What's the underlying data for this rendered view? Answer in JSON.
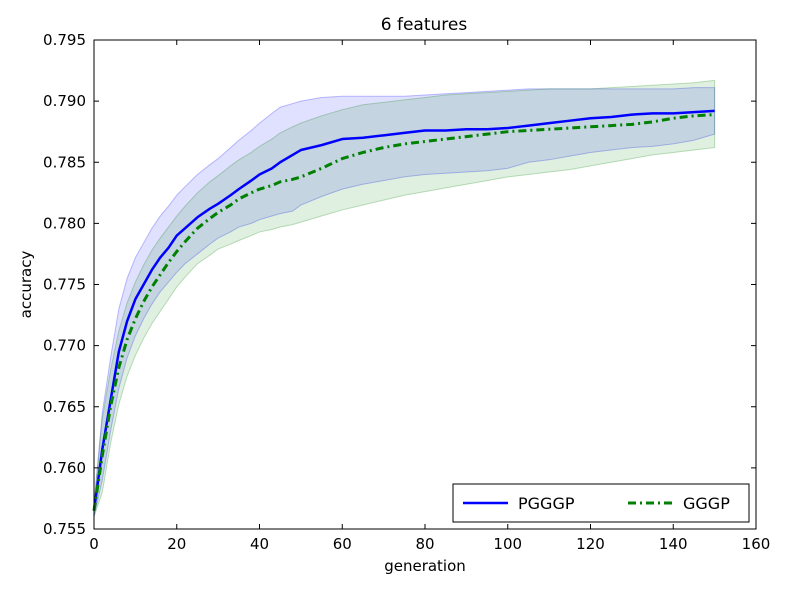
{
  "chart_data": {
    "type": "line",
    "title": "6 features",
    "xlabel": "generation",
    "ylabel": "accuracy",
    "xlim": [
      0,
      160
    ],
    "ylim": [
      0.755,
      0.795
    ],
    "xticks": [
      0,
      20,
      40,
      60,
      80,
      100,
      120,
      140,
      160
    ],
    "yticks": [
      0.755,
      0.76,
      0.765,
      0.77,
      0.775,
      0.78,
      0.785,
      0.79,
      0.795
    ],
    "xtick_labels": [
      "0",
      "20",
      "40",
      "60",
      "80",
      "100",
      "120",
      "140",
      "160"
    ],
    "ytick_labels": [
      "0.755",
      "0.760",
      "0.765",
      "0.770",
      "0.775",
      "0.780",
      "0.785",
      "0.790",
      "0.795"
    ],
    "grid": false,
    "legend_position": "lower-right",
    "series": [
      {
        "name": "PGGGP",
        "color": "#0000ff",
        "style": "solid",
        "x": [
          0,
          2,
          4,
          6,
          8,
          10,
          12,
          14,
          16,
          18,
          20,
          22,
          25,
          28,
          30,
          33,
          35,
          38,
          40,
          43,
          45,
          48,
          50,
          55,
          60,
          65,
          70,
          75,
          80,
          85,
          90,
          95,
          100,
          105,
          110,
          115,
          120,
          125,
          130,
          135,
          140,
          145,
          150
        ],
        "values": [
          0.7565,
          0.7615,
          0.7655,
          0.7695,
          0.772,
          0.7738,
          0.775,
          0.7762,
          0.7772,
          0.778,
          0.779,
          0.7796,
          0.7805,
          0.7812,
          0.7816,
          0.7823,
          0.7828,
          0.7835,
          0.784,
          0.7845,
          0.785,
          0.7856,
          0.786,
          0.7864,
          0.7869,
          0.787,
          0.7872,
          0.7874,
          0.7876,
          0.7876,
          0.7877,
          0.7877,
          0.7878,
          0.788,
          0.7882,
          0.7884,
          0.7886,
          0.7887,
          0.7889,
          0.789,
          0.789,
          0.7891,
          0.7892
        ],
        "band_upper": [
          0.757,
          0.7645,
          0.769,
          0.773,
          0.7755,
          0.7772,
          0.7784,
          0.7796,
          0.7806,
          0.7814,
          0.7823,
          0.783,
          0.784,
          0.7848,
          0.7853,
          0.7862,
          0.7868,
          0.7876,
          0.7882,
          0.789,
          0.7895,
          0.7898,
          0.79,
          0.7903,
          0.7904,
          0.7904,
          0.7904,
          0.7904,
          0.7905,
          0.7906,
          0.7907,
          0.7908,
          0.7909,
          0.791,
          0.791,
          0.791,
          0.791,
          0.791,
          0.791,
          0.791,
          0.791,
          0.7911,
          0.7911
        ],
        "band_lower": [
          0.756,
          0.759,
          0.763,
          0.7665,
          0.769,
          0.7708,
          0.7722,
          0.7734,
          0.7744,
          0.7752,
          0.776,
          0.7767,
          0.7775,
          0.7783,
          0.7788,
          0.7793,
          0.7797,
          0.78,
          0.7803,
          0.7806,
          0.7808,
          0.781,
          0.7815,
          0.7822,
          0.7828,
          0.7832,
          0.7835,
          0.7838,
          0.784,
          0.7841,
          0.7842,
          0.7843,
          0.7845,
          0.785,
          0.7852,
          0.7855,
          0.7858,
          0.786,
          0.7862,
          0.7863,
          0.7865,
          0.7868,
          0.7873
        ]
      },
      {
        "name": "GGGP",
        "color": "#008000",
        "style": "dash-dot",
        "x": [
          0,
          2,
          4,
          6,
          8,
          10,
          12,
          14,
          16,
          18,
          20,
          22,
          25,
          28,
          30,
          33,
          35,
          38,
          40,
          43,
          45,
          48,
          50,
          55,
          60,
          65,
          70,
          75,
          80,
          85,
          90,
          95,
          100,
          105,
          110,
          115,
          120,
          125,
          130,
          135,
          140,
          145,
          150
        ],
        "values": [
          0.7565,
          0.761,
          0.765,
          0.7682,
          0.7705,
          0.7722,
          0.7736,
          0.7748,
          0.7758,
          0.7768,
          0.7777,
          0.7785,
          0.7796,
          0.7804,
          0.7809,
          0.7815,
          0.782,
          0.7825,
          0.7828,
          0.7831,
          0.7834,
          0.7836,
          0.7838,
          0.7845,
          0.7853,
          0.7858,
          0.7862,
          0.7865,
          0.7867,
          0.7869,
          0.7871,
          0.7873,
          0.7875,
          0.7876,
          0.7877,
          0.7878,
          0.7879,
          0.788,
          0.7881,
          0.7883,
          0.7886,
          0.7888,
          0.7889
        ],
        "band_upper": [
          0.757,
          0.764,
          0.768,
          0.7712,
          0.7735,
          0.7752,
          0.7766,
          0.7778,
          0.7788,
          0.7797,
          0.7806,
          0.7814,
          0.7825,
          0.7834,
          0.7839,
          0.7847,
          0.7852,
          0.7858,
          0.7863,
          0.7869,
          0.7874,
          0.7879,
          0.7882,
          0.7888,
          0.7893,
          0.7897,
          0.7899,
          0.7901,
          0.7903,
          0.7905,
          0.7906,
          0.7907,
          0.7908,
          0.7909,
          0.791,
          0.791,
          0.791,
          0.7911,
          0.7912,
          0.7913,
          0.7914,
          0.7915,
          0.7917
        ],
        "band_lower": [
          0.756,
          0.758,
          0.762,
          0.7652,
          0.7675,
          0.7692,
          0.7706,
          0.7718,
          0.7728,
          0.7738,
          0.7748,
          0.7756,
          0.7767,
          0.7774,
          0.7779,
          0.7783,
          0.7786,
          0.779,
          0.7793,
          0.7795,
          0.7797,
          0.7799,
          0.7801,
          0.7806,
          0.7811,
          0.7815,
          0.7819,
          0.7823,
          0.7826,
          0.7829,
          0.7832,
          0.7835,
          0.7838,
          0.784,
          0.7842,
          0.7844,
          0.7847,
          0.785,
          0.7853,
          0.7856,
          0.7858,
          0.786,
          0.7862
        ]
      }
    ]
  }
}
